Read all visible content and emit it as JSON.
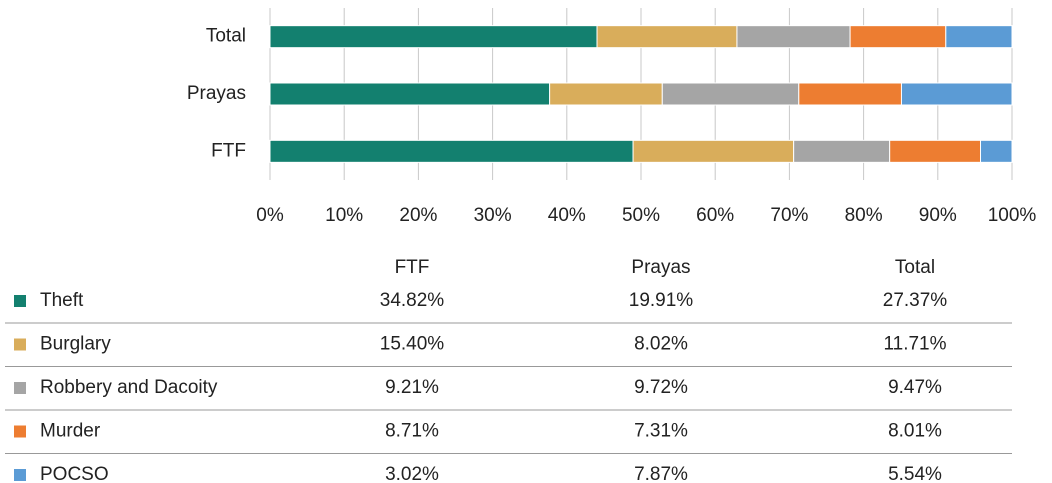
{
  "chart_data": {
    "type": "bar",
    "orientation": "horizontal",
    "stack": "percent",
    "categories": [
      "FTF",
      "Prayas",
      "Total"
    ],
    "series": [
      {
        "name": "Theft",
        "color": "#13806f",
        "values": [
          34.82,
          19.91,
          27.37
        ],
        "value_labels": [
          "34.82%",
          "19.91%",
          "27.37%"
        ]
      },
      {
        "name": "Burglary",
        "color": "#d9ad5b",
        "values": [
          15.4,
          8.02,
          11.71
        ],
        "value_labels": [
          "15.40%",
          "8.02%",
          "11.71%"
        ]
      },
      {
        "name": "Robbery and Dacoity",
        "color": "#a5a5a5",
        "values": [
          9.21,
          9.72,
          9.47
        ],
        "value_labels": [
          "9.21%",
          "9.72%",
          "9.47%"
        ]
      },
      {
        "name": "Murder",
        "color": "#ed7d31",
        "values": [
          8.71,
          7.31,
          8.01
        ],
        "value_labels": [
          "8.71%",
          "7.31%",
          "8.01%"
        ]
      },
      {
        "name": "POCSO",
        "color": "#5b9bd5",
        "values": [
          3.02,
          7.87,
          5.54
        ],
        "value_labels": [
          "3.02%",
          "7.87%",
          "5.54%"
        ]
      }
    ],
    "xlim": [
      0,
      100
    ],
    "xticks": [
      {
        "value": 0,
        "label": "0%"
      },
      {
        "value": 10,
        "label": "10%"
      },
      {
        "value": 20,
        "label": "20%"
      },
      {
        "value": 30,
        "label": "30%"
      },
      {
        "value": 40,
        "label": "40%"
      },
      {
        "value": 50,
        "label": "50%"
      },
      {
        "value": 60,
        "label": "60%"
      },
      {
        "value": 70,
        "label": "70%"
      },
      {
        "value": 80,
        "label": "80%"
      },
      {
        "value": 90,
        "label": "90%"
      },
      {
        "value": 100,
        "label": "100%"
      }
    ],
    "grid": true
  }
}
